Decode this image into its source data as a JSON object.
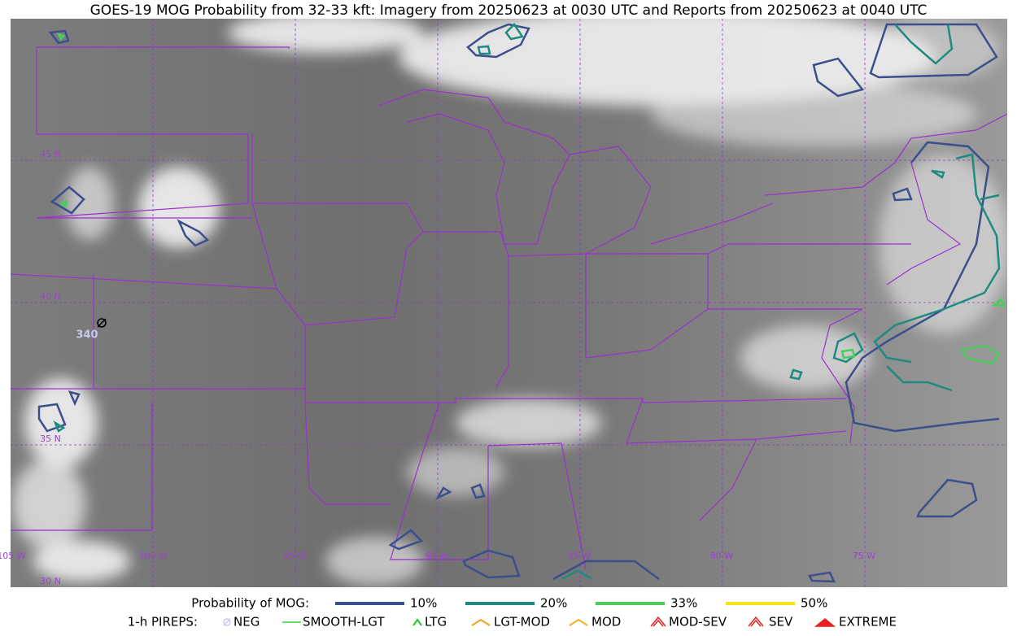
{
  "title": "GOES-19 MOG Probability from 32-33 kft: Imagery from 20250623 at 0030 UTC and Reports from 20250623 at 0040 UTC",
  "latitude_labels": [
    "45 N",
    "40 N",
    "35 N",
    "30 N"
  ],
  "longitude_labels": [
    "105 W",
    "100 W",
    "95 W",
    "90 W",
    "85 W",
    "80 W",
    "75 W"
  ],
  "pirep": {
    "altitude_label": "340"
  },
  "legend": {
    "probability_title": "Probability of MOG:",
    "probability_levels": [
      {
        "label": "10%",
        "color": "#3b4f8c"
      },
      {
        "label": "20%",
        "color": "#1f8a80"
      },
      {
        "label": "33%",
        "color": "#4ccc5c"
      },
      {
        "label": "50%",
        "color": "#f5e11b"
      }
    ],
    "pireps_title": "1-h PIREPS:",
    "pirep_types": [
      "NEG",
      "SMOOTH-LGT",
      "LTG",
      "LGT-MOD",
      "MOD",
      "MOD-SEV",
      "SEV",
      "EXTREME"
    ]
  }
}
